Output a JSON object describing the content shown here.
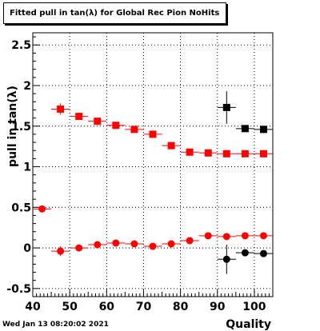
{
  "title": "Fitted pull in tan(λ) for Global Rec Pion NoHits",
  "footer": "Wed Jan 13 08:20:02 2021",
  "chart_data": {
    "type": "scatter",
    "title": "Fitted pull in tan(λ) for Global Rec Pion NoHits",
    "xlabel": "Quality",
    "ylabel": "pull in tan(λ)",
    "xlim": [
      40,
      105
    ],
    "ylim": [
      -0.6,
      2.65
    ],
    "grid": true,
    "xticks": [
      40,
      50,
      60,
      70,
      80,
      90,
      100
    ],
    "yticks": [
      -0.5,
      0,
      0.5,
      1,
      1.5,
      2,
      2.5
    ],
    "series": [
      {
        "marker": "square",
        "color": "#ff0000",
        "points": [
          {
            "x": 47.5,
            "y": 1.71,
            "xerr": 2.5,
            "yerr": 0.07
          },
          {
            "x": 52.5,
            "y": 1.62,
            "xerr": 2.5,
            "yerr": 0.04
          },
          {
            "x": 57.5,
            "y": 1.56,
            "xerr": 2.5,
            "yerr": 0.03
          },
          {
            "x": 62.5,
            "y": 1.51,
            "xerr": 2.5,
            "yerr": 0.03
          },
          {
            "x": 67.5,
            "y": 1.46,
            "xerr": 2.5,
            "yerr": 0.03
          },
          {
            "x": 72.5,
            "y": 1.4,
            "xerr": 2.5,
            "yerr": 0.03
          },
          {
            "x": 77.5,
            "y": 1.26,
            "xerr": 2.5,
            "yerr": 0.03
          },
          {
            "x": 82.5,
            "y": 1.18,
            "xerr": 2.5,
            "yerr": 0.02
          },
          {
            "x": 87.5,
            "y": 1.17,
            "xerr": 2.5,
            "yerr": 0.02
          },
          {
            "x": 92.5,
            "y": 1.16,
            "xerr": 2.5,
            "yerr": 0.02
          },
          {
            "x": 97.5,
            "y": 1.16,
            "xerr": 2.5,
            "yerr": 0.02
          },
          {
            "x": 102.5,
            "y": 1.16,
            "xerr": 2.5,
            "yerr": 0.02
          }
        ]
      },
      {
        "marker": "square",
        "color": "#000000",
        "points": [
          {
            "x": 92.5,
            "y": 1.73,
            "xerr": 2.5,
            "yerr": 0.2
          },
          {
            "x": 97.5,
            "y": 1.47,
            "xerr": 2.5,
            "yerr": 0.03
          },
          {
            "x": 102.5,
            "y": 1.46,
            "xerr": 2.5,
            "yerr": 0.03
          }
        ]
      },
      {
        "marker": "circle",
        "color": "#ff0000",
        "points": [
          {
            "x": 42.5,
            "y": 0.48,
            "xerr": 2.5,
            "yerr": 0.02
          },
          {
            "x": 47.5,
            "y": -0.04,
            "xerr": 2.5,
            "yerr": 0.06
          },
          {
            "x": 52.5,
            "y": 0.0,
            "xerr": 2.5,
            "yerr": 0.03
          },
          {
            "x": 57.5,
            "y": 0.04,
            "xerr": 2.5,
            "yerr": 0.03
          },
          {
            "x": 62.5,
            "y": 0.06,
            "xerr": 2.5,
            "yerr": 0.03
          },
          {
            "x": 67.5,
            "y": 0.05,
            "xerr": 2.5,
            "yerr": 0.03
          },
          {
            "x": 72.5,
            "y": 0.02,
            "xerr": 2.5,
            "yerr": 0.03
          },
          {
            "x": 77.5,
            "y": 0.05,
            "xerr": 2.5,
            "yerr": 0.03
          },
          {
            "x": 82.5,
            "y": 0.09,
            "xerr": 2.5,
            "yerr": 0.02
          },
          {
            "x": 87.5,
            "y": 0.15,
            "xerr": 2.5,
            "yerr": 0.02
          },
          {
            "x": 92.5,
            "y": 0.14,
            "xerr": 2.5,
            "yerr": 0.02
          },
          {
            "x": 97.5,
            "y": 0.15,
            "xerr": 2.5,
            "yerr": 0.02
          },
          {
            "x": 102.5,
            "y": 0.15,
            "xerr": 2.5,
            "yerr": 0.02
          }
        ]
      },
      {
        "marker": "circle",
        "color": "#000000",
        "points": [
          {
            "x": 92.5,
            "y": -0.14,
            "xerr": 2.5,
            "yerr": 0.18
          },
          {
            "x": 97.5,
            "y": -0.06,
            "xerr": 2.5,
            "yerr": 0.03
          },
          {
            "x": 102.5,
            "y": -0.07,
            "xerr": 2.5,
            "yerr": 0.03
          }
        ]
      }
    ]
  }
}
